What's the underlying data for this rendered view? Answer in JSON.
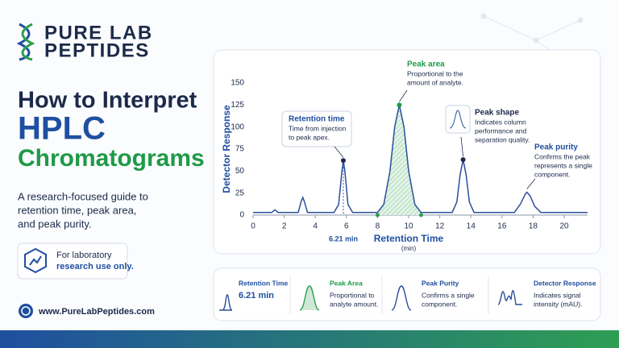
{
  "header": {
    "brand_line1": "PURE LAB",
    "brand_line2": "PEPTIDES"
  },
  "title": {
    "line1": "How to Interpret",
    "line2": "HPLC",
    "line3": "Chromatograms"
  },
  "subtitle": [
    "A research-focused guide to",
    "retention time, peak area,",
    "and peak purity."
  ],
  "notice": [
    "For laboratory",
    "research use only."
  ],
  "website": "www.PureLabPeptides.com",
  "chart_data": {
    "type": "line",
    "y_label": "Detector Response",
    "x_label": "Retention Time",
    "x_unit": "(min)",
    "x": [
      0,
      1.2,
      1.4,
      1.6,
      2.9,
      3.1,
      3.2,
      3.3,
      3.5,
      4.5,
      5.2,
      5.5,
      5.7,
      5.8,
      5.9,
      6.1,
      6.4,
      8.0,
      8.4,
      8.8,
      9.1,
      9.4,
      9.7,
      10.0,
      10.4,
      10.8,
      12.8,
      13.1,
      13.3,
      13.5,
      13.7,
      13.9,
      14.2,
      16.8,
      17.2,
      17.5,
      17.6,
      17.8,
      18.1,
      18.5,
      21.5
    ],
    "values": [
      3,
      3,
      6,
      3,
      3,
      16,
      20,
      15,
      3,
      3,
      3,
      12,
      48,
      62,
      50,
      12,
      3,
      3,
      12,
      50,
      100,
      125,
      100,
      50,
      12,
      3,
      3,
      15,
      45,
      63,
      45,
      15,
      3,
      3,
      13,
      24,
      26,
      22,
      10,
      3,
      3
    ],
    "color": "#2a4f9a",
    "xlim": [
      0,
      21.5
    ],
    "ylim": [
      0,
      150
    ],
    "xticks": [
      0,
      2,
      4,
      6,
      8,
      10,
      12,
      14,
      16,
      18,
      20
    ],
    "yticks": [
      0,
      25,
      50,
      75,
      100,
      125,
      150
    ],
    "highlight": {
      "color": "#2e9e52",
      "xlim": [
        8.0,
        10.8
      ]
    },
    "retention_label": "6.21 min",
    "annotations": [
      {
        "title": "Retention time",
        "text": [
          "Time from injection",
          "to peak apex."
        ],
        "color": "#1f4fa0",
        "dot_color": "#1c2a4a"
      },
      {
        "title": "Peak area",
        "text": [
          "Proportional to the",
          "amount of analyte."
        ],
        "color": "#1e9a48",
        "dot_color": "#1e9a48"
      },
      {
        "title": "Peak shape",
        "text": [
          "Indicates column",
          "performance and",
          "separation quality."
        ],
        "color": "#1c2a4a",
        "dot_color": "#1c2a4a"
      },
      {
        "title": "Peak purity",
        "text": [
          "Confirms the peak",
          "represents a single",
          "component."
        ],
        "color": "#1f4fa0"
      }
    ]
  },
  "cards": [
    {
      "title": "Retention Time",
      "text": [
        "6.21 min"
      ]
    },
    {
      "title": "Peak Area",
      "text": [
        "Proportional to",
        "analyte amount."
      ]
    },
    {
      "title": "Peak Purity",
      "text": [
        "Confirms a single",
        "component."
      ]
    },
    {
      "title": "Detector Response",
      "text": [
        "Indicates signal",
        "intensity (mAU)."
      ]
    }
  ]
}
